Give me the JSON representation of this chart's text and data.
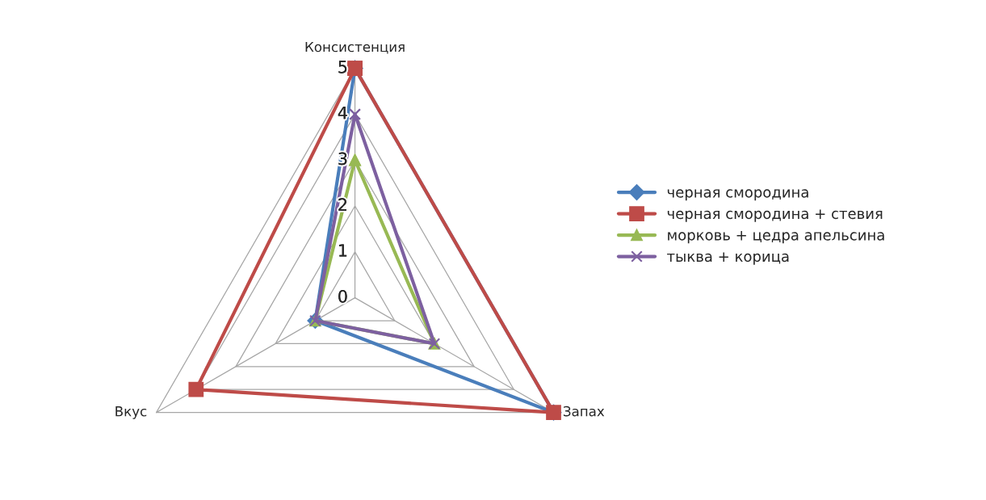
{
  "chart_data": {
    "type": "radar",
    "categories": [
      "Консистенция",
      "Запах",
      "Вкус"
    ],
    "ylim": [
      0,
      5
    ],
    "yticks": [
      0,
      1,
      2,
      3,
      4,
      5
    ],
    "grid": true,
    "legend": "right",
    "series": [
      {
        "name": "черная смородина",
        "color": "#4a7ebb",
        "marker": "diamond",
        "values": [
          5,
          5,
          1
        ]
      },
      {
        "name": "черная смородина + стевия",
        "color": "#be4b48",
        "marker": "square",
        "values": [
          5,
          5,
          4
        ]
      },
      {
        "name": "морковь + цедра апельсина",
        "color": "#98b954",
        "marker": "triangle",
        "values": [
          3,
          2,
          1
        ]
      },
      {
        "name": "тыква + корица",
        "color": "#7d60a0",
        "marker": "cross",
        "values": [
          4,
          2,
          1
        ]
      }
    ]
  }
}
